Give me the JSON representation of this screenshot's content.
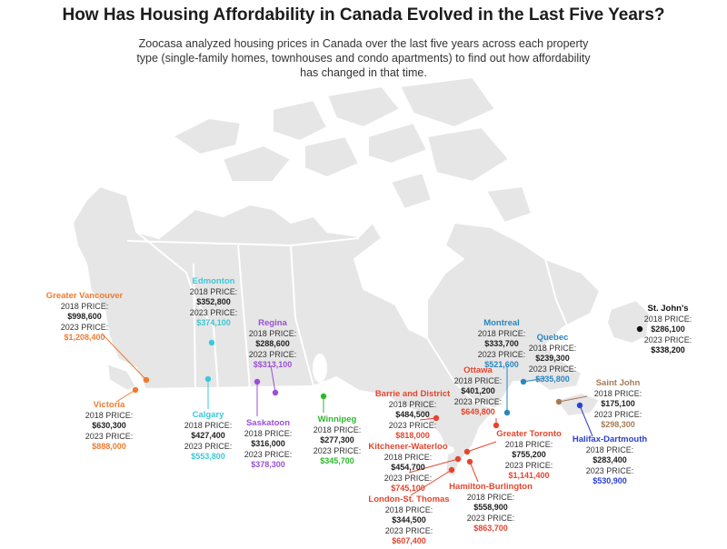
{
  "title": "How Has Housing Affordability in Canada Evolved in the Last Five Years?",
  "subtitle": "Zoocasa analyzed housing prices in Canada over the last five years across each property type (single-family homes, townhouses and condo apartments) to find out how affordability has changed in that time.",
  "colors": {
    "land": "#e6e6e6",
    "border": "#ffffff",
    "vancouver": "#f07a2e",
    "victoria": "#f07a2e",
    "alberta": "#3cc8d8",
    "sask": "#9a4fd6",
    "manitoba": "#2eb82e",
    "ontario": "#e5452e",
    "quebec": "#2a86c0",
    "newbrunswick": "#a57a56",
    "novascotia": "#2b3fd6",
    "newfoundland": "#111111"
  },
  "cities": [
    {
      "name": "Greater Vancouver",
      "label_2018": "2018 PRICE:",
      "price_2018": "$998,600",
      "label_2023": "2023 PRICE:",
      "price_2023": "$1,208,400",
      "color_key": "vancouver"
    },
    {
      "name": "Victoria",
      "label_2018": "2018 PRICE:",
      "price_2018": "$630,300",
      "label_2023": "2023 PRICE:",
      "price_2023": "$888,000",
      "color_key": "victoria"
    },
    {
      "name": "Edmonton",
      "label_2018": "2018 PRICE:",
      "price_2018": "$352,800",
      "label_2023": "2023 PRICE:",
      "price_2023": "$374,100",
      "color_key": "alberta"
    },
    {
      "name": "Calgary",
      "label_2018": "2018 PRICE:",
      "price_2018": "$427,400",
      "label_2023": "2023 PRICE:",
      "price_2023": "$553,800",
      "color_key": "alberta"
    },
    {
      "name": "Regina",
      "label_2018": "2018 PRICE:",
      "price_2018": "$288,600",
      "label_2023": "2023 PRICE:",
      "price_2023": "$$313,100",
      "color_key": "sask"
    },
    {
      "name": "Saskatoon",
      "label_2018": "2018 PRICE:",
      "price_2018": "$316,000",
      "label_2023": "2023 PRICE:",
      "price_2023": "$378,300",
      "color_key": "sask"
    },
    {
      "name": "Winnipeg",
      "label_2018": "2018 PRICE:",
      "price_2018": "$277,300",
      "label_2023": "2023 PRICE:",
      "price_2023": "$345,700",
      "color_key": "manitoba"
    },
    {
      "name": "Barrie and District",
      "label_2018": "2018 PRICE:",
      "price_2018": "$484,500",
      "label_2023": "2023 PRICE:",
      "price_2023": "$818,000",
      "color_key": "ontario"
    },
    {
      "name": "Ottawa",
      "label_2018": "2018 PRICE:",
      "price_2018": "$401,200",
      "label_2023": "2023 PRICE:",
      "price_2023": "$649,800",
      "color_key": "ontario"
    },
    {
      "name": "Montreal",
      "label_2018": "2018 PRICE:",
      "price_2018": "$333,700",
      "label_2023": "2023 PRICE:",
      "price_2023": "$521,600",
      "color_key": "quebec"
    },
    {
      "name": "Quebec",
      "label_2018": "2018 PRICE:",
      "price_2018": "$239,300",
      "label_2023": "2023 PRICE:",
      "price_2023": "$335,800",
      "color_key": "quebec"
    },
    {
      "name": "St. John's",
      "label_2018": "2018 PRICE:",
      "price_2018": "$286,100",
      "label_2023": "2023 PRICE:",
      "price_2023": "$338,200",
      "color_key": "newfoundland"
    },
    {
      "name": "Saint John",
      "label_2018": "2018 PRICE:",
      "price_2018": "$175,100",
      "label_2023": "2023 PRICE:",
      "price_2023": "$298,300",
      "color_key": "newbrunswick"
    },
    {
      "name": "Halifax-Dartmouth",
      "label_2018": "2018 PRICE:",
      "price_2018": "$283,400",
      "label_2023": "2023 PRICE:",
      "price_2023": "$530,900",
      "color_key": "novascotia"
    },
    {
      "name": "Greater Toronto",
      "label_2018": "2018 PRICE:",
      "price_2018": "$755,200",
      "label_2023": "2023 PRICE:",
      "price_2023": "$1,141,400",
      "color_key": "ontario"
    },
    {
      "name": "Kitchener-Waterloo",
      "label_2018": "2018 PRICE:",
      "price_2018": "$454,700",
      "label_2023": "2023 PRICE:",
      "price_2023": "$745,100",
      "color_key": "ontario"
    },
    {
      "name": "Hamilton-Burlington",
      "label_2018": "2018 PRICE:",
      "price_2018": "$558,900",
      "label_2023": "2023 PRICE:",
      "price_2023": "$863,700",
      "color_key": "ontario"
    },
    {
      "name": "London-St. Thomas",
      "label_2018": "2018 PRICE:",
      "price_2018": "$344,500",
      "label_2023": "2023 PRICE:",
      "price_2023": "$607,400",
      "color_key": "ontario"
    }
  ]
}
